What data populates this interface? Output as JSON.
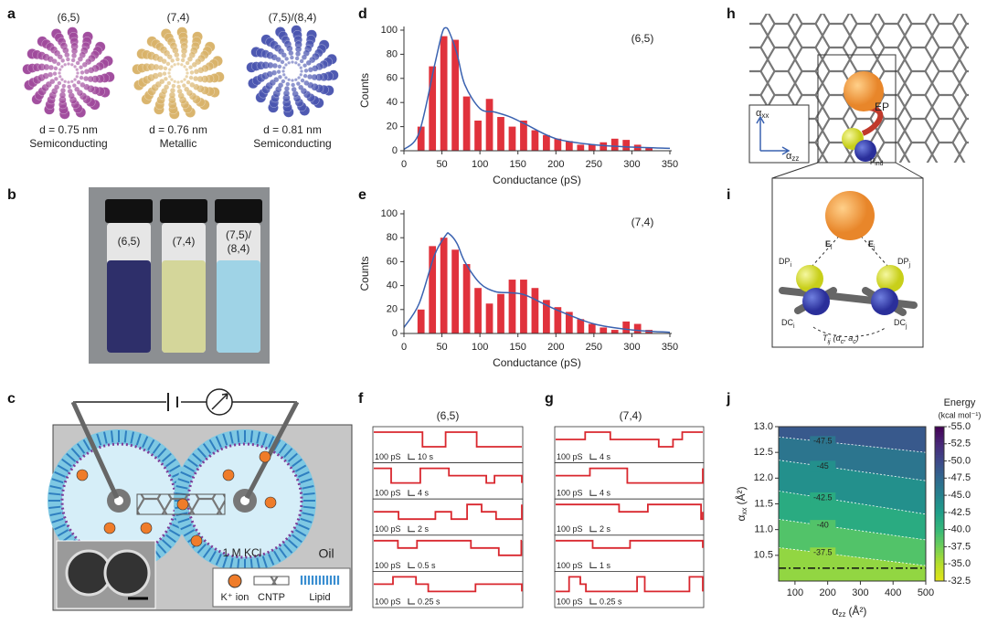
{
  "panels": {
    "a": {
      "label": "a",
      "tubes": [
        {
          "chirality": "(6,5)",
          "diameter": "d = 0.75 nm",
          "kind": "Semiconducting"
        },
        {
          "chirality": "(7,4)",
          "diameter": "d = 0.76 nm",
          "kind": "Metallic"
        },
        {
          "chirality": "(7,5)/(8,4)",
          "diameter": "d = 0.81 nm",
          "kind": "Semiconducting"
        }
      ]
    },
    "b": {
      "label": "b",
      "vials": [
        [
          "(6,5)"
        ],
        [
          "(7,4)"
        ],
        [
          "(7,5)/",
          "(8,4)"
        ]
      ]
    },
    "c": {
      "label": "c",
      "electrolyte": "1 M KCl",
      "medium": "Oil",
      "legend": [
        "K⁺ ion",
        "CNTP",
        "Lipid"
      ]
    },
    "f": {
      "label": "f",
      "title": "(6,5)",
      "scale_bars": [
        {
          "current": "100 pS",
          "time": "10 s"
        },
        {
          "current": "100 pS",
          "time": "4 s"
        },
        {
          "current": "100 pS",
          "time": "2 s"
        },
        {
          "current": "100 pS",
          "time": "0.5 s"
        },
        {
          "current": "100 pS",
          "time": "0.25 s"
        }
      ]
    },
    "g": {
      "label": "g",
      "title": "(7,4)",
      "scale_bars": [
        {
          "current": "100 pS",
          "time": "4 s"
        },
        {
          "current": "100 pS",
          "time": "4 s"
        },
        {
          "current": "100 pS",
          "time": "2 s"
        },
        {
          "current": "100 pS",
          "time": "1 s"
        },
        {
          "current": "100 pS",
          "time": "0.25 s"
        }
      ]
    },
    "h": {
      "label": "h",
      "ep": "EP",
      "axis_x": {
        "symbol": "α",
        "sub": "zz"
      },
      "axis_y": {
        "symbol": "α",
        "sub": "xx"
      },
      "dipole": {
        "symbol": "μ",
        "sub": "ind"
      }
    },
    "i": {
      "label": "i",
      "field_i": {
        "symbol": "E",
        "sub": "i"
      },
      "field_j": {
        "symbol": "E",
        "sub": "j"
      },
      "dp_i": {
        "symbol": "DP",
        "sub": "i"
      },
      "dp_j": {
        "symbol": "DP",
        "sub": "j"
      },
      "dc_i": {
        "symbol": "DC",
        "sub": "i"
      },
      "dc_j": {
        "symbol": "DC",
        "sub": "j"
      },
      "coupling": [
        "T",
        "ij",
        "(α",
        "c",
        ", a",
        "c",
        ")"
      ]
    }
  },
  "chart_data": [
    {
      "type": "histogram",
      "label": "d",
      "annotation": "(6,5)",
      "xlabel": "Conductance (pS)",
      "ylabel": "Counts",
      "bins": [
        15,
        30,
        45,
        60,
        75,
        90,
        105,
        120,
        135,
        150,
        165,
        180,
        195,
        210,
        225,
        240,
        255,
        270,
        285,
        300,
        315,
        330
      ],
      "values": [
        20,
        70,
        95,
        92,
        45,
        25,
        43,
        28,
        20,
        25,
        17,
        13,
        10,
        8,
        5,
        5,
        7,
        10,
        9,
        5,
        3
      ],
      "color": "#e0323c",
      "fit": {
        "x": [
          0,
          20,
          40,
          50,
          55,
          60,
          70,
          80,
          100,
          120,
          140,
          160,
          200,
          250,
          300,
          350
        ],
        "values": [
          1,
          15,
          70,
          97,
          102,
          98,
          80,
          55,
          35,
          32,
          28,
          22,
          10,
          5,
          3,
          2
        ],
        "color": "#3a62b0"
      },
      "xlim": [
        0,
        350
      ],
      "ylim": [
        0,
        100
      ],
      "xticks": [
        0,
        50,
        100,
        150,
        200,
        250,
        300,
        350
      ],
      "yticks": [
        0,
        20,
        40,
        60,
        80,
        100
      ]
    },
    {
      "type": "histogram",
      "label": "e",
      "annotation": "(7,4)",
      "xlabel": "Conductance (pS)",
      "ylabel": "Counts",
      "bins": [
        15,
        30,
        45,
        60,
        75,
        90,
        105,
        120,
        135,
        150,
        165,
        180,
        195,
        210,
        225,
        240,
        255,
        270,
        285,
        300,
        315,
        330
      ],
      "values": [
        20,
        73,
        80,
        70,
        58,
        38,
        25,
        33,
        45,
        45,
        38,
        28,
        22,
        18,
        12,
        8,
        5,
        3,
        10,
        8,
        3
      ],
      "color": "#e0323c",
      "fit": {
        "x": [
          0,
          20,
          40,
          55,
          60,
          70,
          80,
          100,
          120,
          140,
          160,
          200,
          250,
          300,
          350
        ],
        "values": [
          5,
          25,
          65,
          82,
          83,
          75,
          60,
          42,
          35,
          34,
          32,
          20,
          8,
          3,
          1
        ],
        "color": "#3a62b0"
      },
      "xlim": [
        0,
        350
      ],
      "ylim": [
        0,
        100
      ],
      "xticks": [
        0,
        50,
        100,
        150,
        200,
        250,
        300,
        350
      ],
      "yticks": [
        0,
        20,
        40,
        60,
        80,
        100
      ]
    },
    {
      "type": "contour",
      "label": "j",
      "xlabel": {
        "symbol": "α",
        "sub": "zz",
        "unit": "(Å²)"
      },
      "ylabel": {
        "symbol": "α",
        "sub": "xx",
        "unit": "(Å²)"
      },
      "colorbar_title": [
        "Energy",
        "(kcal mol⁻¹)"
      ],
      "xlim": [
        50,
        500
      ],
      "ylim": [
        10.0,
        13.0
      ],
      "xticks": [
        100,
        200,
        300,
        400,
        500
      ],
      "yticks": [
        10.5,
        {
          "value": 11,
          "label": "11.0"
        },
        11.5,
        {
          "value": 12,
          "label": "12.0"
        },
        12.5,
        {
          "value": 13,
          "label": "13.0"
        }
      ],
      "clim": [
        -55,
        -32.5
      ],
      "cticks": [
        {
          "value": -55,
          "label": "-55.0"
        },
        -52.5,
        {
          "value": -50,
          "label": "-50.0"
        },
        -47.5,
        {
          "value": -45,
          "label": "-45.0"
        },
        -42.5,
        {
          "value": -40,
          "label": "-40.0"
        },
        -37.5,
        {
          "value": -35,
          "label": "-35.0"
        },
        -32.5
      ],
      "colormap": [
        "#440154",
        "#482878",
        "#3e4989",
        "#31688e",
        "#26828e",
        "#1f9e89",
        "#35b779",
        "#6ece58",
        "#b5de2b",
        "#e2e418"
      ],
      "contours": [
        {
          "level": -47.5,
          "x": [
            50,
            500
          ],
          "y": [
            12.8,
            12.5
          ]
        },
        {
          "level": -45,
          "x": [
            50,
            500
          ],
          "y": [
            12.35,
            11.95
          ]
        },
        {
          "level": -42.5,
          "x": [
            50,
            500
          ],
          "y": [
            11.75,
            11.3
          ]
        },
        {
          "level": -40,
          "x": [
            50,
            500
          ],
          "y": [
            11.2,
            10.8
          ]
        },
        {
          "level": -37.5,
          "x": [
            50,
            500
          ],
          "y": [
            10.65,
            10.3
          ]
        }
      ],
      "hline": 10.25
    }
  ]
}
